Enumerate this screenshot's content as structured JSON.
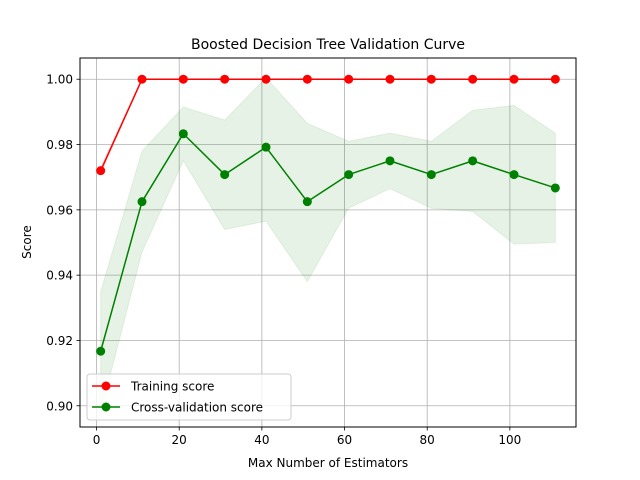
{
  "chart_data": {
    "type": "line",
    "title": "Boosted Decision Tree Validation Curve",
    "xlabel": "Max Number of Estimators",
    "ylabel": "Score",
    "x": [
      1,
      11,
      21,
      31,
      41,
      51,
      61,
      71,
      81,
      91,
      101,
      111
    ],
    "xlim": [
      -4,
      116
    ],
    "ylim": [
      0.8935,
      1.0065
    ],
    "xticks": [
      0,
      20,
      40,
      60,
      80,
      100
    ],
    "xtick_labels": [
      "0",
      "20",
      "40",
      "60",
      "80",
      "100"
    ],
    "yticks": [
      0.9,
      0.92,
      0.94,
      0.96,
      0.98,
      1.0
    ],
    "ytick_labels": [
      "0.90",
      "0.92",
      "0.94",
      "0.96",
      "0.98",
      "1.00"
    ],
    "grid": true,
    "legend_position": "lower-left",
    "series": [
      {
        "name": "Training score",
        "color": "#ff0000",
        "marker": "circle",
        "values": [
          0.972,
          1.0,
          1.0,
          1.0,
          1.0,
          1.0,
          1.0,
          1.0,
          1.0,
          1.0,
          1.0,
          1.0
        ],
        "band_lower": [
          0.971,
          1.0,
          1.0,
          1.0,
          1.0,
          1.0,
          1.0,
          1.0,
          1.0,
          1.0,
          1.0,
          1.0
        ],
        "band_upper": [
          0.973,
          1.0,
          1.0,
          1.0,
          1.0,
          1.0,
          1.0,
          1.0,
          1.0,
          1.0,
          1.0,
          1.0
        ]
      },
      {
        "name": "Cross-validation score",
        "color": "#008000",
        "band_color": "#008000",
        "band_opacity": 0.1,
        "marker": "circle",
        "values": [
          0.9167,
          0.9625,
          0.9833,
          0.9708,
          0.9792,
          0.9625,
          0.9708,
          0.975,
          0.9708,
          0.975,
          0.9708,
          0.9667
        ],
        "band_lower": [
          0.898,
          0.947,
          0.975,
          0.954,
          0.9565,
          0.938,
          0.9605,
          0.9665,
          0.9605,
          0.9595,
          0.9495,
          0.95
        ],
        "band_upper": [
          0.935,
          0.978,
          0.9915,
          0.9875,
          1.0005,
          0.9865,
          0.981,
          0.9835,
          0.981,
          0.9905,
          0.992,
          0.9835
        ]
      }
    ]
  }
}
